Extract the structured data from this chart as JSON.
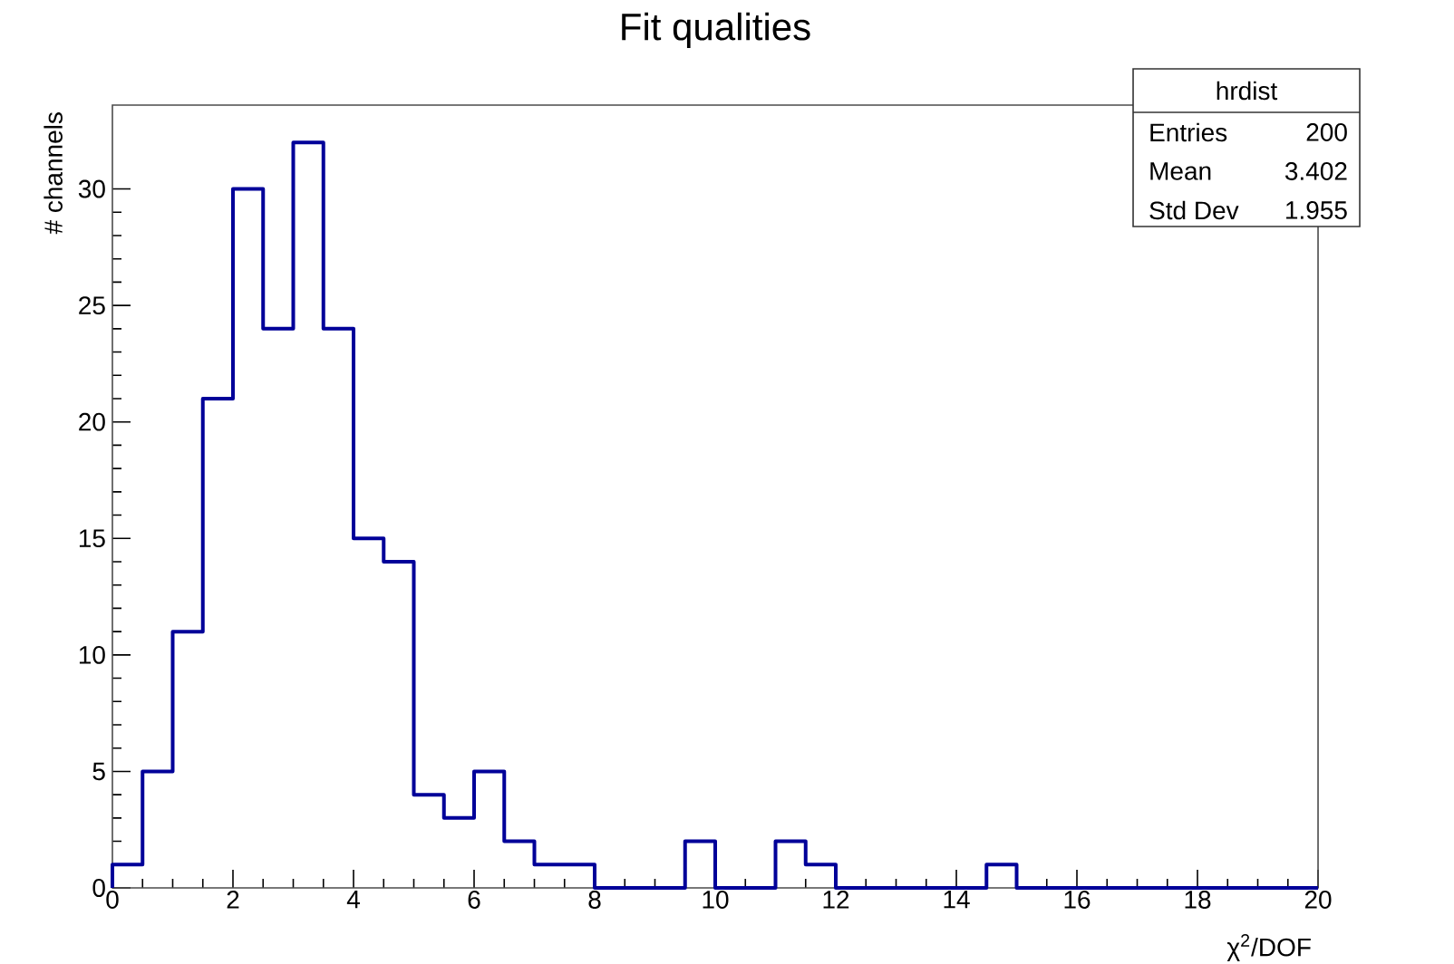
{
  "chart_data": {
    "type": "histogram",
    "title": "Fit qualities",
    "xlabel": "χ$^{2}$/DOF",
    "ylabel": "# channels",
    "bins": [
      0,
      0.5,
      1,
      1.5,
      2,
      2.5,
      3,
      3.5,
      4,
      4.5,
      5,
      5.5,
      6,
      6.5,
      7,
      7.5,
      8,
      8.5,
      9,
      9.5,
      10,
      10.5,
      11,
      11.5,
      12,
      12.5,
      13,
      13.5,
      14,
      14.5,
      15,
      15.5,
      16,
      16.5,
      17,
      17.5,
      18,
      18.5,
      19,
      19.5,
      20
    ],
    "values": [
      1,
      5,
      11,
      21,
      30,
      24,
      32,
      24,
      15,
      14,
      4,
      3,
      5,
      2,
      1,
      1,
      0,
      0,
      0,
      2,
      0,
      0,
      2,
      1,
      0,
      0,
      0,
      0,
      0,
      1,
      0,
      0,
      0,
      0,
      0,
      0,
      0,
      0,
      0,
      0
    ],
    "color": "#000099",
    "xlim": [
      0,
      20
    ],
    "ylim": [
      0,
      33.6
    ],
    "xticks": [
      0,
      2,
      4,
      6,
      8,
      10,
      12,
      14,
      16,
      18,
      20
    ],
    "yticks": [
      0,
      5,
      10,
      15,
      20,
      25,
      30
    ],
    "grid": false,
    "annotations": [
      "hrdist",
      "Entries",
      "200",
      "Mean",
      "3.402",
      "Std Dev",
      "1.955"
    ]
  }
}
